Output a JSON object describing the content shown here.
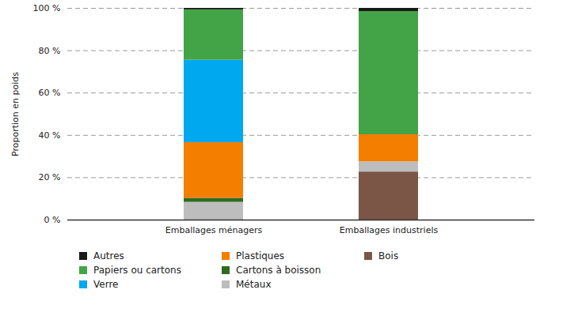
{
  "chart_data": {
    "type": "bar",
    "stacked": true,
    "y_label": "Proportion en poids",
    "categories": [
      "Emballages ménagers",
      "Emballages industriels"
    ],
    "series": [
      {
        "name": "Bois",
        "color": "#7b5545",
        "values": [
          0,
          22.7
        ]
      },
      {
        "name": "Métaux",
        "color": "#bdbdbd",
        "values": [
          8.4,
          4.8
        ]
      },
      {
        "name": "Cartons à boisson",
        "color": "#2e6b1f",
        "values": [
          1.9,
          0
        ]
      },
      {
        "name": "Plastiques",
        "color": "#f47e00",
        "values": [
          26.3,
          12.8
        ]
      },
      {
        "name": "Verre",
        "color": "#00a8f0",
        "values": [
          38.9,
          0
        ]
      },
      {
        "name": "Papiers ou cartons",
        "color": "#43a447",
        "values": [
          23.8,
          58.2
        ]
      },
      {
        "name": "Autres",
        "color": "#1a1a1a",
        "values": [
          0.7,
          1.5
        ]
      }
    ],
    "ylim": [
      0,
      100
    ],
    "yticks": [
      {
        "value": 0,
        "label": "0 %"
      },
      {
        "value": 20,
        "label": "20 %"
      },
      {
        "value": 40,
        "label": "40 %"
      },
      {
        "value": 60,
        "label": "60 %"
      },
      {
        "value": 80,
        "label": "80 %"
      },
      {
        "value": 100,
        "label": "100 %"
      }
    ],
    "grid": true,
    "legend": "bottom"
  }
}
